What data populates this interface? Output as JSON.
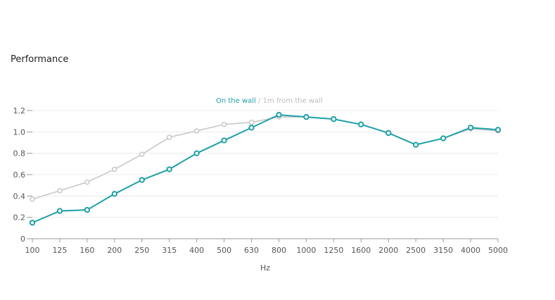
{
  "section": {
    "title": "Performance"
  },
  "chart_data": {
    "type": "line",
    "categories": [
      "100",
      "125",
      "160",
      "200",
      "250",
      "315",
      "400",
      "500",
      "630",
      "800",
      "1000",
      "1250",
      "1600",
      "2000",
      "2500",
      "3150",
      "4000",
      "5000"
    ],
    "series": [
      {
        "name": "On the wall",
        "color": "#1fa0a8",
        "values": [
          0.15,
          0.26,
          0.27,
          0.42,
          0.55,
          0.65,
          0.8,
          0.92,
          1.04,
          1.16,
          1.14,
          1.12,
          1.07,
          0.99,
          0.88,
          0.94,
          1.04,
          1.02
        ]
      },
      {
        "name": "1m from the wall",
        "color": "#c8c8c8",
        "values": [
          0.37,
          0.45,
          0.53,
          0.65,
          0.79,
          0.95,
          1.01,
          1.07,
          1.09,
          1.14,
          1.14,
          1.12,
          1.07,
          0.99,
          0.88,
          0.94,
          1.03,
          1.01
        ]
      }
    ],
    "legend": {
      "separator": "/",
      "position": "top-center"
    },
    "xlabel": "Hz",
    "ylabel": "",
    "yticks": [
      "0",
      "0.2",
      "0.4",
      "0.6",
      "0.8",
      "1.0",
      "1.2"
    ],
    "ylim": [
      0,
      1.2
    ],
    "grid": true
  }
}
